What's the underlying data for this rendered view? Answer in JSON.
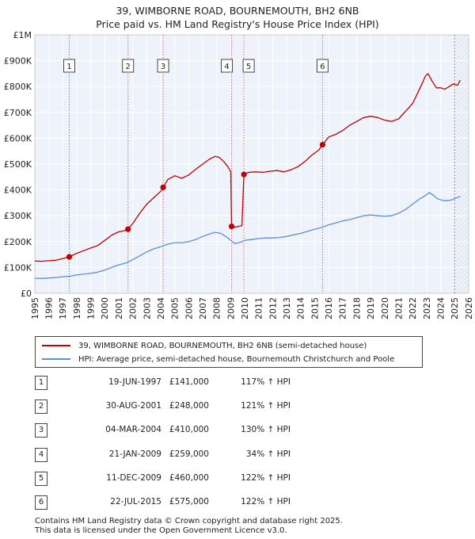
{
  "header": {
    "title_line1": "39, WIMBORNE ROAD, BOURNEMOUTH, BH2 6NB",
    "title_line2": "Price paid vs. HM Land Registry's House Price Index (HPI)"
  },
  "legend": {
    "property_label": "39, WIMBORNE ROAD, BOURNEMOUTH, BH2 6NB (semi-detached house)",
    "hpi_label": "HPI: Average price, semi-detached house, Bournemouth Christchurch and Poole"
  },
  "sales": [
    {
      "num": "1",
      "date": "19-JUN-1997",
      "price": "£141,000",
      "hpi": "117% ↑ HPI"
    },
    {
      "num": "2",
      "date": "30-AUG-2001",
      "price": "£248,000",
      "hpi": "121% ↑ HPI"
    },
    {
      "num": "3",
      "date": "04-MAR-2004",
      "price": "£410,000",
      "hpi": "130% ↑ HPI"
    },
    {
      "num": "4",
      "date": "21-JAN-2009",
      "price": "£259,000",
      "hpi": "34% ↑ HPI"
    },
    {
      "num": "5",
      "date": "11-DEC-2009",
      "price": "£460,000",
      "hpi": "122% ↑ HPI"
    },
    {
      "num": "6",
      "date": "22-JUL-2015",
      "price": "£575,000",
      "hpi": "122% ↑ HPI"
    }
  ],
  "footer": {
    "line1": "Contains HM Land Registry data © Crown copyright and database right 2025.",
    "line2": "This data is licensed under the Open Government Licence v3.0."
  },
  "chart_data": {
    "type": "line",
    "title": "39, WIMBORNE ROAD, BOURNEMOUTH, BH2 6NB",
    "subtitle": "Price paid vs. HM Land Registry's House Price Index (HPI)",
    "xlabel": "",
    "ylabel": "",
    "xlim": [
      1995,
      2026
    ],
    "ylim": [
      0,
      1000000
    ],
    "x_ticks": [
      1995,
      1996,
      1997,
      1998,
      1999,
      2000,
      2001,
      2002,
      2003,
      2004,
      2005,
      2006,
      2007,
      2008,
      2009,
      2010,
      2011,
      2012,
      2013,
      2014,
      2015,
      2016,
      2017,
      2018,
      2019,
      2020,
      2021,
      2022,
      2023,
      2024,
      2025,
      2026
    ],
    "y_ticks": [
      0,
      100000,
      200000,
      300000,
      400000,
      500000,
      600000,
      700000,
      800000,
      900000,
      1000000
    ],
    "y_tick_labels": [
      "£0",
      "£100K",
      "£200K",
      "£300K",
      "£400K",
      "£500K",
      "£600K",
      "£700K",
      "£800K",
      "£900K",
      "£1M"
    ],
    "grid": true,
    "colors": {
      "property": "#c00000",
      "hpi": "#5b8fd0",
      "band": "#eef2fb",
      "grid": "#ffffff",
      "vline": "#e05a7a"
    },
    "sale_markers": [
      {
        "label": "1",
        "x": 1997.46,
        "y": 141000
      },
      {
        "label": "2",
        "x": 2001.66,
        "y": 248000
      },
      {
        "label": "3",
        "x": 2004.17,
        "y": 410000
      },
      {
        "label": "4",
        "x": 2009.06,
        "y": 259000
      },
      {
        "label": "5",
        "x": 2009.94,
        "y": 460000
      },
      {
        "label": "6",
        "x": 2015.56,
        "y": 575000
      }
    ],
    "future_start": 2025.0,
    "series": [
      {
        "name": "39, WIMBORNE ROAD, BOURNEMOUTH, BH2 6NB (semi-detached house)",
        "x": [
          1995.0,
          1995.5,
          1996.0,
          1996.5,
          1997.0,
          1997.46,
          1998.0,
          1998.5,
          1999.0,
          1999.5,
          2000.0,
          2000.5,
          2001.0,
          2001.4,
          2001.66,
          2002.0,
          2002.5,
          2003.0,
          2003.5,
          2004.0,
          2004.17,
          2004.5,
          2005.0,
          2005.5,
          2006.0,
          2006.5,
          2007.0,
          2007.5,
          2007.9,
          2008.2,
          2008.5,
          2008.8,
          2009.0,
          2009.06,
          2009.2,
          2009.5,
          2009.8,
          2009.94,
          2010.3,
          2010.8,
          2011.3,
          2011.8,
          2012.3,
          2012.8,
          2013.3,
          2013.8,
          2014.3,
          2014.8,
          2015.3,
          2015.56,
          2016.0,
          2016.5,
          2017.0,
          2017.5,
          2018.0,
          2018.5,
          2019.0,
          2019.5,
          2020.0,
          2020.5,
          2021.0,
          2021.5,
          2022.0,
          2022.4,
          2022.7,
          2022.9,
          2023.1,
          2023.4,
          2023.7,
          2024.0,
          2024.3,
          2024.6,
          2024.9,
          2025.2,
          2025.4
        ],
        "values": [
          125000,
          124000,
          126000,
          128000,
          134000,
          141000,
          155000,
          165000,
          175000,
          185000,
          205000,
          225000,
          238000,
          242000,
          248000,
          270000,
          310000,
          345000,
          370000,
          395000,
          410000,
          440000,
          455000,
          445000,
          458000,
          480000,
          500000,
          520000,
          530000,
          525000,
          510000,
          490000,
          470000,
          259000,
          255000,
          258000,
          262000,
          460000,
          468000,
          470000,
          468000,
          472000,
          475000,
          470000,
          478000,
          490000,
          510000,
          535000,
          555000,
          575000,
          605000,
          615000,
          630000,
          650000,
          665000,
          680000,
          685000,
          680000,
          670000,
          665000,
          675000,
          705000,
          735000,
          780000,
          815000,
          840000,
          850000,
          820000,
          795000,
          795000,
          790000,
          800000,
          810000,
          805000,
          825000
        ]
      },
      {
        "name": "HPI: Average price, semi-detached house, Bournemouth Christchurch and Poole",
        "x": [
          1995.0,
          1995.5,
          1996.0,
          1996.5,
          1997.0,
          1997.5,
          1998.0,
          1998.5,
          1999.0,
          1999.5,
          2000.0,
          2000.5,
          2001.0,
          2001.5,
          2002.0,
          2002.5,
          2003.0,
          2003.5,
          2004.0,
          2004.5,
          2005.0,
          2005.5,
          2006.0,
          2006.5,
          2007.0,
          2007.5,
          2007.9,
          2008.3,
          2008.7,
          2009.0,
          2009.3,
          2009.7,
          2010.0,
          2010.5,
          2011.0,
          2011.5,
          2012.0,
          2012.5,
          2013.0,
          2013.5,
          2014.0,
          2014.5,
          2015.0,
          2015.5,
          2016.0,
          2016.5,
          2017.0,
          2017.5,
          2018.0,
          2018.5,
          2019.0,
          2019.5,
          2020.0,
          2020.5,
          2021.0,
          2021.5,
          2022.0,
          2022.5,
          2022.9,
          2023.2,
          2023.5,
          2023.8,
          2024.1,
          2024.4,
          2024.7,
          2025.0,
          2025.4
        ],
        "values": [
          58000,
          57500,
          59000,
          61000,
          64000,
          66000,
          71000,
          74000,
          77000,
          82000,
          90000,
          100000,
          110000,
          117000,
          130000,
          145000,
          160000,
          172000,
          180000,
          190000,
          196000,
          196000,
          200000,
          208000,
          220000,
          230000,
          236000,
          232000,
          218000,
          205000,
          192000,
          198000,
          205000,
          208000,
          212000,
          214000,
          214000,
          216000,
          220000,
          226000,
          232000,
          240000,
          248000,
          255000,
          265000,
          272000,
          280000,
          285000,
          293000,
          300000,
          303000,
          300000,
          298000,
          300000,
          310000,
          325000,
          345000,
          365000,
          378000,
          390000,
          378000,
          365000,
          360000,
          358000,
          360000,
          366000,
          375000
        ]
      }
    ]
  }
}
